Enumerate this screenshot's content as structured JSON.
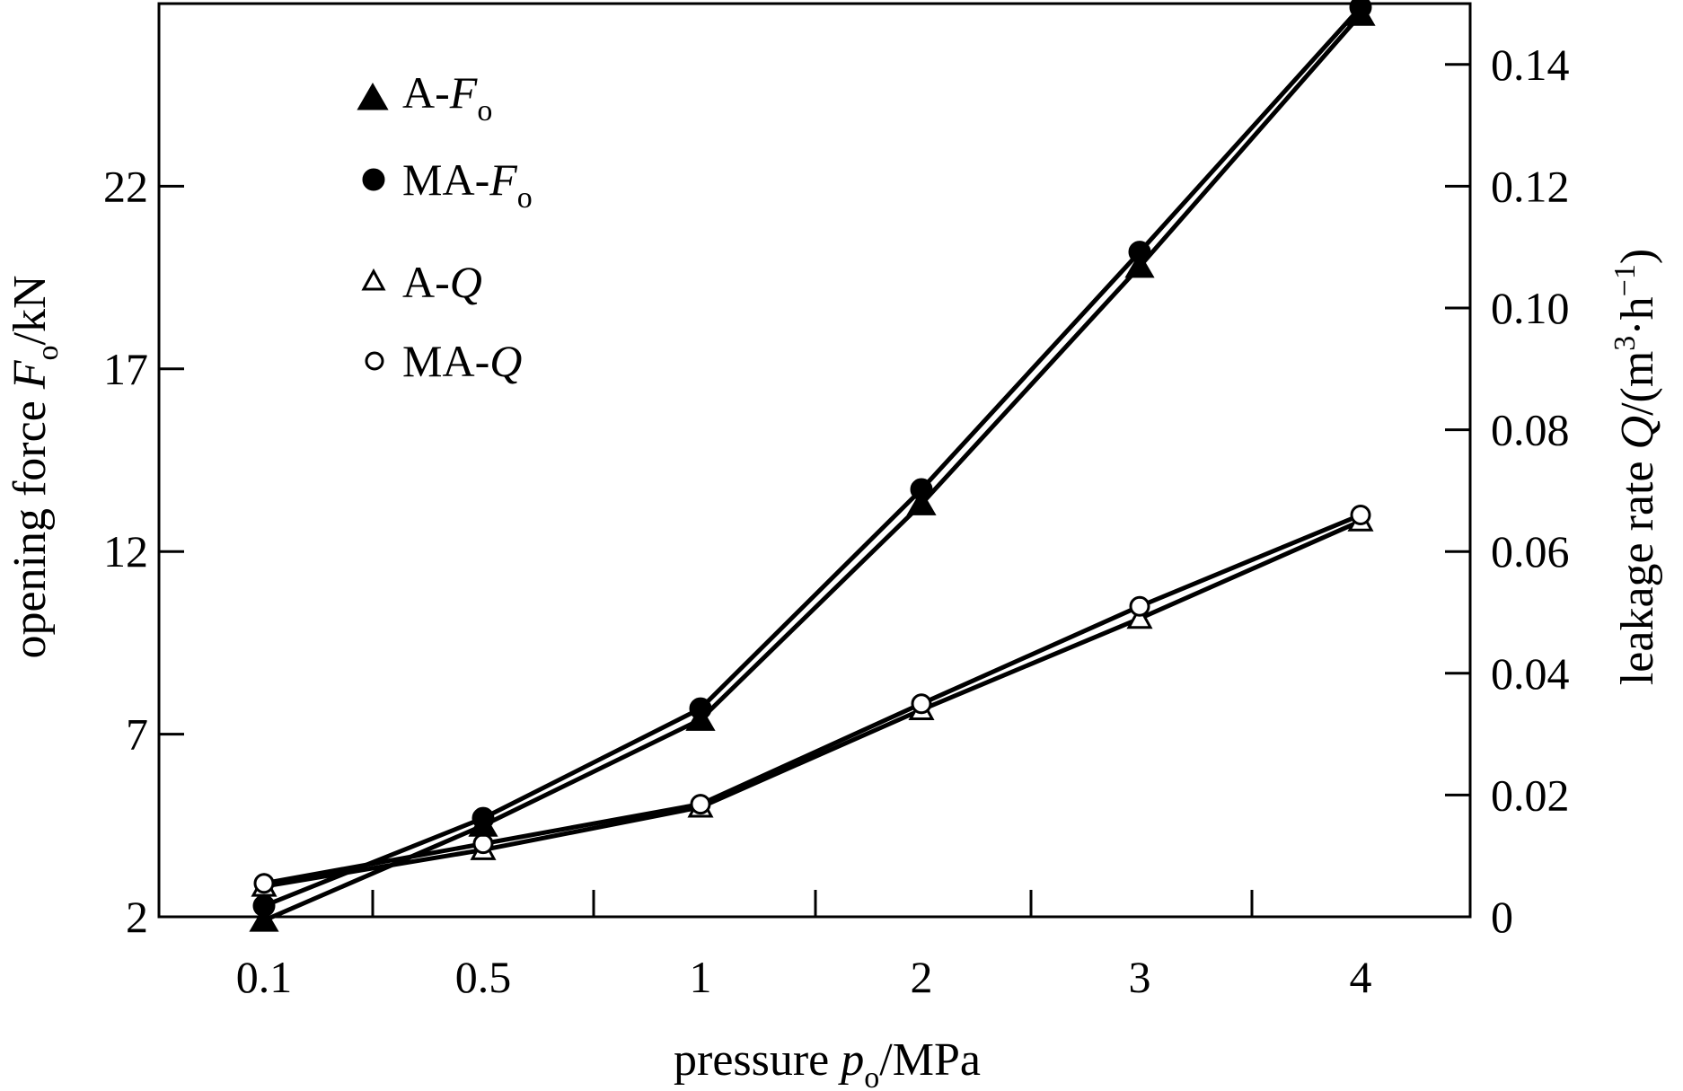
{
  "chart_data": {
    "type": "line",
    "x_tick_labels": [
      "0.1",
      "0.5",
      "1",
      "2",
      "3",
      "4"
    ],
    "x_axis": {
      "label": "pressure",
      "label_var": "p",
      "label_sub": "o",
      "label_unit": "/MPa"
    },
    "y_left": {
      "label": "opening force ",
      "label_var": "F",
      "label_sub": "o",
      "label_unit": "/kN",
      "range": [
        2,
        27
      ],
      "ticks": [
        2,
        7,
        12,
        17,
        22
      ]
    },
    "y_right": {
      "label": "leakage rate ",
      "label_var": "Q",
      "label_unit": "/(m",
      "label_sup1": "3",
      "label_mid": "·h",
      "label_sup2": "−1",
      "label_close": ")",
      "range": [
        0,
        0.15
      ],
      "ticks": [
        "0",
        "0.02",
        "0.04",
        "0.06",
        "0.08",
        "0.10",
        "0.12",
        "0.14"
      ]
    },
    "series": [
      {
        "name": "A-Fo",
        "label_prefix": "A-",
        "label_var": "F",
        "label_sub": "o",
        "axis": "left",
        "marker": "triangle-filled",
        "values": [
          1.9,
          4.5,
          7.4,
          13.3,
          19.8,
          26.7
        ]
      },
      {
        "name": "MA-Fo",
        "label_prefix": "MA-",
        "label_var": "F",
        "label_sub": "o",
        "axis": "left",
        "marker": "circle-filled",
        "values": [
          2.3,
          4.7,
          7.7,
          13.7,
          20.2,
          26.9
        ]
      },
      {
        "name": "A-Q",
        "label_prefix": "A-",
        "label_var": "Q",
        "label_sub": "",
        "axis": "right",
        "marker": "triangle-open",
        "values": [
          0.005,
          0.011,
          0.018,
          0.034,
          0.049,
          0.065
        ]
      },
      {
        "name": "MA-Q",
        "label_prefix": "MA-",
        "label_var": "Q",
        "label_sub": "",
        "axis": "right",
        "marker": "circle-open",
        "values": [
          0.0055,
          0.012,
          0.0185,
          0.035,
          0.051,
          0.066
        ]
      }
    ],
    "grid": false,
    "legend_position": "top-left"
  }
}
